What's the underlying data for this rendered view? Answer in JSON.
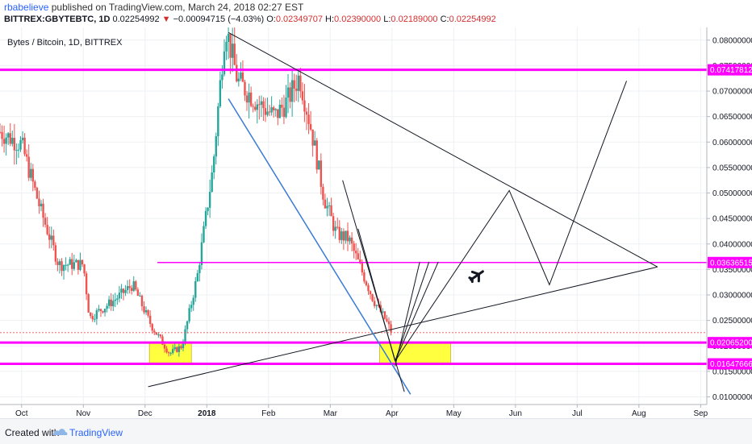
{
  "header": {
    "author": "rbabelieve",
    "published_text": "published on TradingView.com, March 24, 2018 02:27 EST",
    "symbol": "BITTREX:GBYTEBTC, 1D",
    "last": "0.02254992",
    "change_arrow": "▼",
    "change": "−0.00094715 (−4.03%)",
    "o_key": "O:",
    "o_val": "0.02349707",
    "h_key": "H:",
    "h_val": "0.02390000",
    "l_key": "L:",
    "l_val": "0.02189000",
    "c_key": "C:",
    "c_val": "0.02254992"
  },
  "chart_title": "Bytes / Bitcoin, 1D, BITTREX",
  "footer": {
    "created_with": "Created with",
    "brand": "TradingView"
  },
  "colors": {
    "magenta": "#ff00ff",
    "up": "#26a69a",
    "down": "#ef5350",
    "trend_blue": "#3a7bd5",
    "zone_yellow": "#ffff00"
  },
  "icons": [
    "airplane-icon",
    "tradingview-logo-icon"
  ],
  "chart_data": {
    "type": "candlestick",
    "title": "Bytes / Bitcoin, 1D, BITTREX",
    "y_axis": {
      "scale": "linear",
      "range": [
        0.0085,
        0.0825
      ],
      "ticks": [
        "0.08000000",
        "0.07500000",
        "0.07000000",
        "0.06500000",
        "0.06000000",
        "0.05500000",
        "0.05000000",
        "0.04500000",
        "0.04000000",
        "0.03500000",
        "0.03000000",
        "0.02500000",
        "0.02000000",
        "0.01500000",
        "0.01000000"
      ]
    },
    "x_axis": {
      "range_months": [
        -0.35,
        11.1
      ],
      "labels": [
        "Oct",
        "Nov",
        "Dec",
        "2018",
        "Feb",
        "Mar",
        "Apr",
        "May",
        "Jun",
        "Jul",
        "Aug",
        "Sep"
      ]
    },
    "horizontal_levels": [
      {
        "value": 0.07417812,
        "label": "0.07417812",
        "color": "#ff00ff"
      },
      {
        "value": 0.03636515,
        "label": "0.03636515",
        "color": "#ff00ff"
      },
      {
        "value": 0.020652,
        "label": "0.02065200",
        "color": "#ff00ff"
      },
      {
        "value": 0.01647666,
        "label": "0.01647666",
        "color": "#ff00ff"
      }
    ],
    "close_series_approx": [
      [
        -0.35,
        0.062
      ],
      [
        0.0,
        0.0595
      ],
      [
        0.3,
        0.047
      ],
      [
        0.6,
        0.036
      ],
      [
        1.0,
        0.036
      ],
      [
        1.1,
        0.0255
      ],
      [
        1.5,
        0.029
      ],
      [
        1.8,
        0.032
      ],
      [
        2.1,
        0.024
      ],
      [
        2.4,
        0.0185
      ],
      [
        2.6,
        0.02
      ],
      [
        2.85,
        0.034
      ],
      [
        3.1,
        0.055
      ],
      [
        3.3,
        0.083
      ],
      [
        3.5,
        0.072
      ],
      [
        3.8,
        0.068
      ],
      [
        4.1,
        0.065
      ],
      [
        4.3,
        0.068
      ],
      [
        4.5,
        0.073
      ],
      [
        4.7,
        0.062
      ],
      [
        4.9,
        0.049
      ],
      [
        5.1,
        0.042
      ],
      [
        5.3,
        0.041
      ],
      [
        5.5,
        0.035
      ],
      [
        5.7,
        0.029
      ],
      [
        5.9,
        0.025
      ],
      [
        6.0,
        0.0225
      ]
    ],
    "projection_path": [
      [
        6.05,
        0.017
      ],
      [
        7.9,
        0.0505
      ],
      [
        8.55,
        0.032
      ],
      [
        9.8,
        0.072
      ]
    ]
  }
}
